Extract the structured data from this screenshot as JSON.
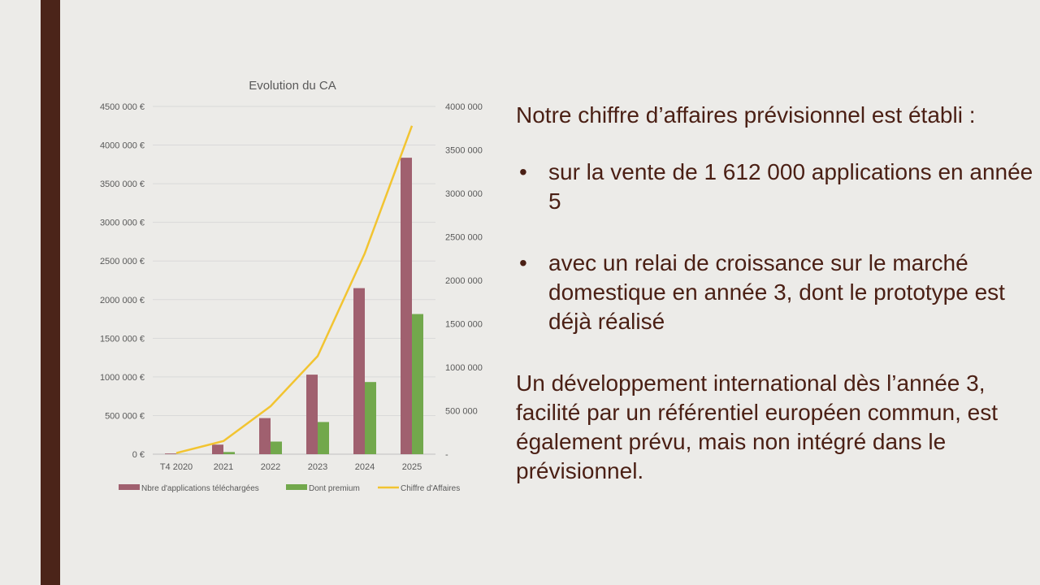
{
  "slide": {
    "intro": "Notre chiffre d’affaires prévisionnel est établi :",
    "bullets": [
      "sur la vente de 1 612 000 applications en année 5",
      "avec un relai de croissance sur le marché domestique en année 3, dont le prototype est déjà réalisé"
    ],
    "closing": "Un développement international dès l’année 3, facilité par un référentiel européen commun, est également prévu, mais non intégré dans le prévisionnel.",
    "bullet_glyph": "•",
    "colors": {
      "sidebar": "#4b2419",
      "text": "#4a1f14",
      "background": "#ecebe8"
    }
  },
  "chart_data": {
    "type": "bar",
    "title": "Evolution du CA",
    "categories": [
      "T4 2020",
      "2021",
      "2022",
      "2023",
      "2024",
      "2025"
    ],
    "y_left": {
      "ticks": [
        "0 €",
        "500 000 €",
        "1000 000 €",
        "1500 000 €",
        "2000 000 €",
        "2500 000 €",
        "3000 000 €",
        "3500 000 €",
        "4000 000 €",
        "4500 000 €"
      ],
      "range": [
        0,
        4500000
      ]
    },
    "y_right": {
      "ticks": [
        "-",
        "500 000",
        "1000 000",
        "1500 000",
        "2000 000",
        "2500 000",
        "3000 000",
        "3500 000",
        "4000 000"
      ],
      "range": [
        0,
        4000000
      ]
    },
    "series": [
      {
        "name": "Nbre d'applications téléchargées",
        "type": "bar",
        "axis": "right",
        "color": "#a0606f",
        "values": [
          8000,
          110000,
          415000,
          915000,
          1910000,
          3410000
        ]
      },
      {
        "name": "Dont premium",
        "type": "bar",
        "axis": "right",
        "color": "#72a84c",
        "values": [
          1500,
          25000,
          145000,
          370000,
          830000,
          1612000
        ]
      },
      {
        "name": "Chiffre d'Affaires",
        "type": "line",
        "axis": "left",
        "color": "#f2c431",
        "values": [
          15000,
          170000,
          620000,
          1270000,
          2600000,
          4250000
        ]
      }
    ],
    "grid": true,
    "legend_position": "bottom"
  }
}
